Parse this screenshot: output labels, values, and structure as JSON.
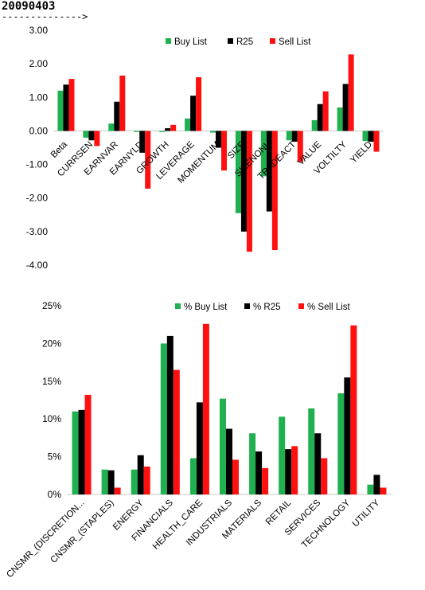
{
  "header": {
    "date": "20090403",
    "arrow": "-------------->"
  },
  "chart_data": [
    {
      "type": "bar",
      "categories": [
        "Beta",
        "CURRSEN",
        "EARNVAR",
        "EARNYLD",
        "GROWTH",
        "LEVERAGE",
        "MOMENTUM",
        "SIZE",
        "SIZENONL",
        "TRADEACT",
        "VALUE",
        "VOLTILTY",
        "YIELD"
      ],
      "series": [
        {
          "name": "Buy List",
          "color": "#1fb04f",
          "values": [
            1.2,
            -0.2,
            0.22,
            -0.03,
            -0.03,
            0.37,
            -0.05,
            -2.45,
            -1.35,
            -0.28,
            0.32,
            0.7,
            -0.3
          ]
        },
        {
          "name": "R25",
          "color": "#000000",
          "values": [
            1.38,
            -0.28,
            0.87,
            -0.65,
            0.08,
            1.05,
            -0.5,
            -3.0,
            -2.4,
            -0.32,
            0.8,
            1.4,
            -0.32
          ]
        },
        {
          "name": "Sell List",
          "color": "#ff1010",
          "values": [
            1.55,
            -0.45,
            1.65,
            -1.72,
            0.18,
            1.6,
            -1.18,
            -3.6,
            -3.55,
            -0.92,
            1.18,
            2.28,
            -0.62
          ]
        }
      ],
      "y_ticks": [
        "3.00",
        "2.00",
        "1.00",
        "0.00",
        "-1.00",
        "-2.00",
        "-3.00",
        "-4.00"
      ],
      "ylim": [
        -4,
        3
      ],
      "legend_position": "top"
    },
    {
      "type": "bar",
      "categories": [
        "CNSMR_(DISCRETION...",
        "CNSMR_(STAPLES)",
        "ENERGY",
        "FINANCIALS",
        "HEALTH_CARE",
        "INDUSTRIALS",
        "MATERIALS",
        "RETAIL",
        "SERVICES",
        "TECHNOLOGY",
        "UTILITY"
      ],
      "series": [
        {
          "name": "% Buy List",
          "color": "#1fb04f",
          "values": [
            11.0,
            3.3,
            3.3,
            20.0,
            4.8,
            12.7,
            8.1,
            10.3,
            11.4,
            13.4,
            1.3
          ]
        },
        {
          "name": "% R25",
          "color": "#000000",
          "values": [
            11.2,
            3.2,
            5.2,
            21.0,
            12.2,
            8.7,
            5.7,
            6.0,
            8.1,
            15.5,
            2.6
          ]
        },
        {
          "name": "% Sell List",
          "color": "#ff1010",
          "values": [
            13.2,
            0.9,
            3.7,
            16.5,
            22.6,
            4.6,
            3.5,
            6.4,
            4.8,
            22.4,
            0.9
          ]
        }
      ],
      "y_ticks": [
        "25%",
        "20%",
        "15%",
        "10%",
        "5%",
        "0%"
      ],
      "ylim": [
        0,
        25
      ],
      "legend_position": "top"
    }
  ]
}
